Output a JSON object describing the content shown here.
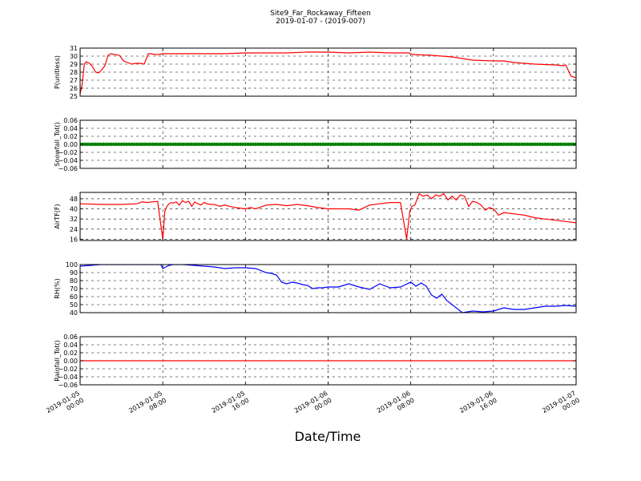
{
  "title": "Site9_Far_Rockaway_Fifteen",
  "subtitle": "2019-01-07 - (2019-007)",
  "xlabel": "Date/Time",
  "x_ticks": [
    [
      "2019-01-05",
      "00:00"
    ],
    [
      "2019-01-05",
      "08:00"
    ],
    [
      "2019-01-05",
      "16:00"
    ],
    [
      "2019-01-06",
      "00:00"
    ],
    [
      "2019-01-06",
      "08:00"
    ],
    [
      "2019-01-06",
      "16:00"
    ],
    [
      "2019-01-07",
      "00:00"
    ]
  ],
  "x_range_hours": [
    0,
    48
  ],
  "chart_data": [
    {
      "type": "line",
      "ylabel": "P(unitless)",
      "ylim": [
        25,
        31
      ],
      "yticks": [
        25,
        26,
        27,
        28,
        29,
        30,
        31
      ],
      "color": "#ff0000",
      "grid": true,
      "series": [
        {
          "x": [
            0,
            0.2,
            0.4,
            0.6,
            0.9,
            1.2,
            1.5,
            1.8,
            2.1,
            2.4,
            2.7,
            3.0,
            3.3,
            3.8,
            4.2,
            4.6,
            5.0,
            5.4,
            5.8,
            6.2,
            6.6,
            6.9,
            7.2,
            7.6,
            8.0,
            9.0,
            10.0,
            12.0,
            14.0,
            16.0,
            18.0,
            20.0,
            22.0,
            24.0,
            26.0,
            28.0,
            30.0,
            31.8,
            32.2,
            34.0,
            36.0,
            38.0,
            40.0,
            41.0,
            42.0,
            44.0,
            46.0,
            46.8,
            47.0,
            47.5,
            48.0
          ],
          "y": [
            25.3,
            26.5,
            29.0,
            29.3,
            29.1,
            28.7,
            28.0,
            27.9,
            28.3,
            28.8,
            30.1,
            30.3,
            30.2,
            30.1,
            29.4,
            29.2,
            29.0,
            29.1,
            29.1,
            29.0,
            30.3,
            30.3,
            30.2,
            30.2,
            30.3,
            30.3,
            30.3,
            30.3,
            30.3,
            30.4,
            30.4,
            30.4,
            30.5,
            30.5,
            30.4,
            30.5,
            30.4,
            30.4,
            30.2,
            30.1,
            29.9,
            29.5,
            29.4,
            29.4,
            29.2,
            29.0,
            28.9,
            28.8,
            28.9,
            27.5,
            27.3
          ]
        }
      ]
    },
    {
      "type": "scatter",
      "ylabel": "Snowfall_Tot()",
      "ylim": [
        -0.06,
        0.06
      ],
      "yticks": [
        -0.06,
        -0.04,
        -0.02,
        0.0,
        0.02,
        0.04,
        0.06
      ],
      "ytick_labels": [
        "−0.06",
        "−0.04",
        "−0.02",
        "0.00",
        "0.02",
        "0.04",
        "0.06"
      ],
      "color": "#008000",
      "grid": true,
      "constant_value": 0.0
    },
    {
      "type": "line",
      "ylabel": "AirTF(F)",
      "ylim": [
        15,
        53
      ],
      "yticks": [
        16,
        24,
        32,
        40,
        48
      ],
      "color": "#ff0000",
      "grid": true,
      "series": [
        {
          "x": [
            0,
            2,
            4,
            5.5,
            6.0,
            6.5,
            7.0,
            7.5,
            7.8,
            8.0,
            8.2,
            8.4,
            8.6,
            8.8,
            9.0,
            9.3,
            9.6,
            9.9,
            10.2,
            10.5,
            10.8,
            11.1,
            11.4,
            11.7,
            12.0,
            12.3,
            12.6,
            12.9,
            13.2,
            13.5,
            14.0,
            14.5,
            15.0,
            16.0,
            16.5,
            17.0,
            18.0,
            19.0,
            20.0,
            21.0,
            22.0,
            23.0,
            24.0,
            25.0,
            26.0,
            27.0,
            28.0,
            29.0,
            30.0,
            31.0,
            31.6,
            31.9,
            32.1,
            32.4,
            32.8,
            33.2,
            33.6,
            34.0,
            34.4,
            34.8,
            35.2,
            35.6,
            36.0,
            36.4,
            36.8,
            37.2,
            37.6,
            38.0,
            38.4,
            38.8,
            39.2,
            39.6,
            40.0,
            40.5,
            41.0,
            42.0,
            43.0,
            44.0,
            45.0,
            46.0,
            47.0,
            48.0
          ],
          "y": [
            44.0,
            43.5,
            43.5,
            44.0,
            45.5,
            45.0,
            45.5,
            46.0,
            28.0,
            16.0,
            38.0,
            42.0,
            44.0,
            45.0,
            44.5,
            45.5,
            43.0,
            46.5,
            45.0,
            46.0,
            42.0,
            45.5,
            44.0,
            43.0,
            45.0,
            44.0,
            43.5,
            43.5,
            43.0,
            42.0,
            43.0,
            42.0,
            41.0,
            40.0,
            41.0,
            40.0,
            43.0,
            43.5,
            42.5,
            43.5,
            42.5,
            41.0,
            40.0,
            40.0,
            40.0,
            39.0,
            43.0,
            44.0,
            45.0,
            45.0,
            16.0,
            38.0,
            42.0,
            43.0,
            52.0,
            50.0,
            51.0,
            48.0,
            51.0,
            50.0,
            52.0,
            47.0,
            50.0,
            47.0,
            51.0,
            50.0,
            42.0,
            46.0,
            45.0,
            43.0,
            39.0,
            41.0,
            40.0,
            35.0,
            37.0,
            36.0,
            35.0,
            33.0,
            32.0,
            31.0,
            30.0,
            29.0
          ]
        }
      ]
    },
    {
      "type": "line",
      "ylabel": "RH(%)",
      "ylim": [
        40,
        100
      ],
      "yticks": [
        40,
        50,
        60,
        70,
        80,
        90,
        100
      ],
      "color": "#0000ff",
      "grid": true,
      "series": [
        {
          "x": [
            0,
            1,
            2,
            3,
            4,
            5,
            6,
            7,
            7.8,
            8.0,
            8.3,
            8.6,
            9,
            10,
            11,
            12,
            13,
            14,
            15,
            16,
            17,
            18,
            18.5,
            19,
            19.5,
            20,
            20.5,
            21,
            21.5,
            22,
            22.5,
            23,
            23.5,
            24,
            25,
            26,
            27,
            28,
            29,
            30,
            31,
            31.5,
            32,
            32.5,
            33,
            33.5,
            34,
            34.5,
            35,
            35.5,
            36,
            37,
            38,
            39,
            40,
            41,
            42,
            43,
            44,
            45,
            46,
            47,
            48
          ],
          "y": [
            98,
            99,
            100,
            100,
            100,
            100,
            100,
            100,
            100,
            95,
            97,
            99,
            100,
            100,
            99,
            98,
            97,
            95,
            96,
            96,
            95,
            90,
            89,
            87,
            78,
            76,
            78,
            77,
            75,
            74,
            70,
            71,
            71,
            72,
            72,
            76,
            72,
            69,
            76,
            71,
            72,
            75,
            78,
            73,
            77,
            73,
            62,
            58,
            63,
            55,
            50,
            40,
            42,
            41,
            42,
            46,
            44,
            44,
            46,
            48,
            48,
            49,
            48
          ]
        }
      ]
    },
    {
      "type": "line",
      "ylabel": "Rainfall_Tot()",
      "ylim": [
        -0.06,
        0.06
      ],
      "yticks": [
        -0.06,
        -0.04,
        -0.02,
        0.0,
        0.02,
        0.04,
        0.06
      ],
      "ytick_labels": [
        "−0.06",
        "−0.04",
        "−0.02",
        "0.00",
        "0.02",
        "0.04",
        "0.06"
      ],
      "color": "#ff0000",
      "grid": true,
      "constant_value": 0.0
    }
  ]
}
